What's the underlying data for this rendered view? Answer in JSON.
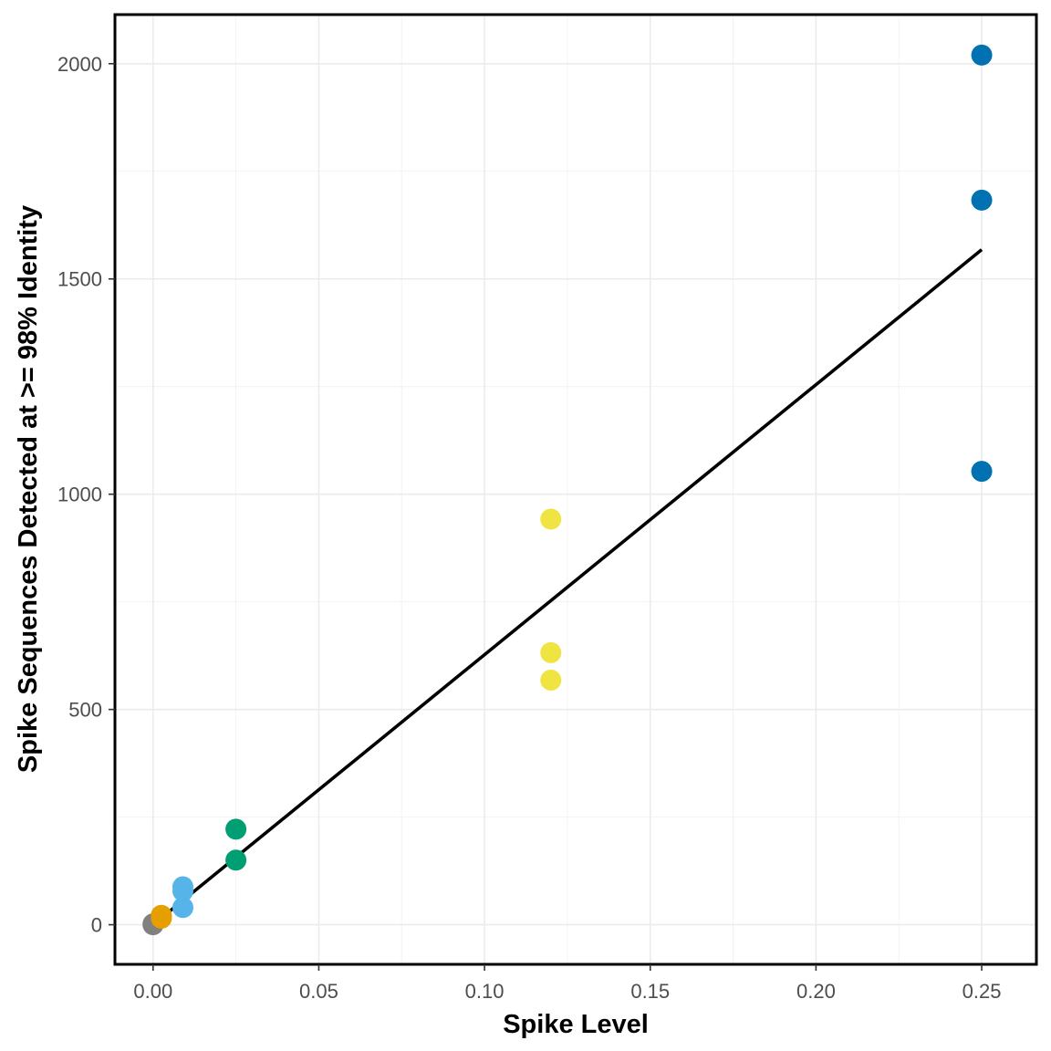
{
  "chart_data": {
    "type": "scatter",
    "title": "",
    "xlabel": "Spike Level",
    "ylabel": "Spike Sequences Detected at >= 98% Identity",
    "xlim": [
      -0.0115,
      0.2665
    ],
    "ylim": [
      -92,
      2114
    ],
    "x_ticks": [
      {
        "value": 0.0,
        "label": "0.00"
      },
      {
        "value": 0.05,
        "label": "0.05"
      },
      {
        "value": 0.1,
        "label": "0.10"
      },
      {
        "value": 0.15,
        "label": "0.15"
      },
      {
        "value": 0.2,
        "label": "0.20"
      },
      {
        "value": 0.25,
        "label": "0.25"
      }
    ],
    "y_ticks": [
      {
        "value": 0,
        "label": "0"
      },
      {
        "value": 500,
        "label": "500"
      },
      {
        "value": 1000,
        "label": "1000"
      },
      {
        "value": 1500,
        "label": "1500"
      },
      {
        "value": 2000,
        "label": "2000"
      }
    ],
    "grid": true,
    "legend": "none",
    "series": [
      {
        "color": "#808080",
        "points": [
          {
            "x": 0.0,
            "y": 0
          },
          {
            "x": 0.0,
            "y": 2
          }
        ]
      },
      {
        "color": "#E69F00",
        "points": [
          {
            "x": 0.0025,
            "y": 22
          },
          {
            "x": 0.0025,
            "y": 18
          },
          {
            "x": 0.0025,
            "y": 15
          }
        ]
      },
      {
        "color": "#56B4E9",
        "points": [
          {
            "x": 0.009,
            "y": 88
          },
          {
            "x": 0.009,
            "y": 78
          },
          {
            "x": 0.009,
            "y": 40
          }
        ]
      },
      {
        "color": "#009E73",
        "points": [
          {
            "x": 0.025,
            "y": 222
          },
          {
            "x": 0.025,
            "y": 150
          }
        ]
      },
      {
        "color": "#F0E442",
        "points": [
          {
            "x": 0.12,
            "y": 942
          },
          {
            "x": 0.12,
            "y": 632
          },
          {
            "x": 0.12,
            "y": 568
          }
        ]
      },
      {
        "color": "#0072B2",
        "points": [
          {
            "x": 0.25,
            "y": 2020
          },
          {
            "x": 0.25,
            "y": 1683
          },
          {
            "x": 0.25,
            "y": 1053
          }
        ]
      }
    ],
    "trend_line": {
      "color": "#000000",
      "x": [
        0.0,
        0.25
      ],
      "y": [
        0,
        1568
      ]
    }
  }
}
